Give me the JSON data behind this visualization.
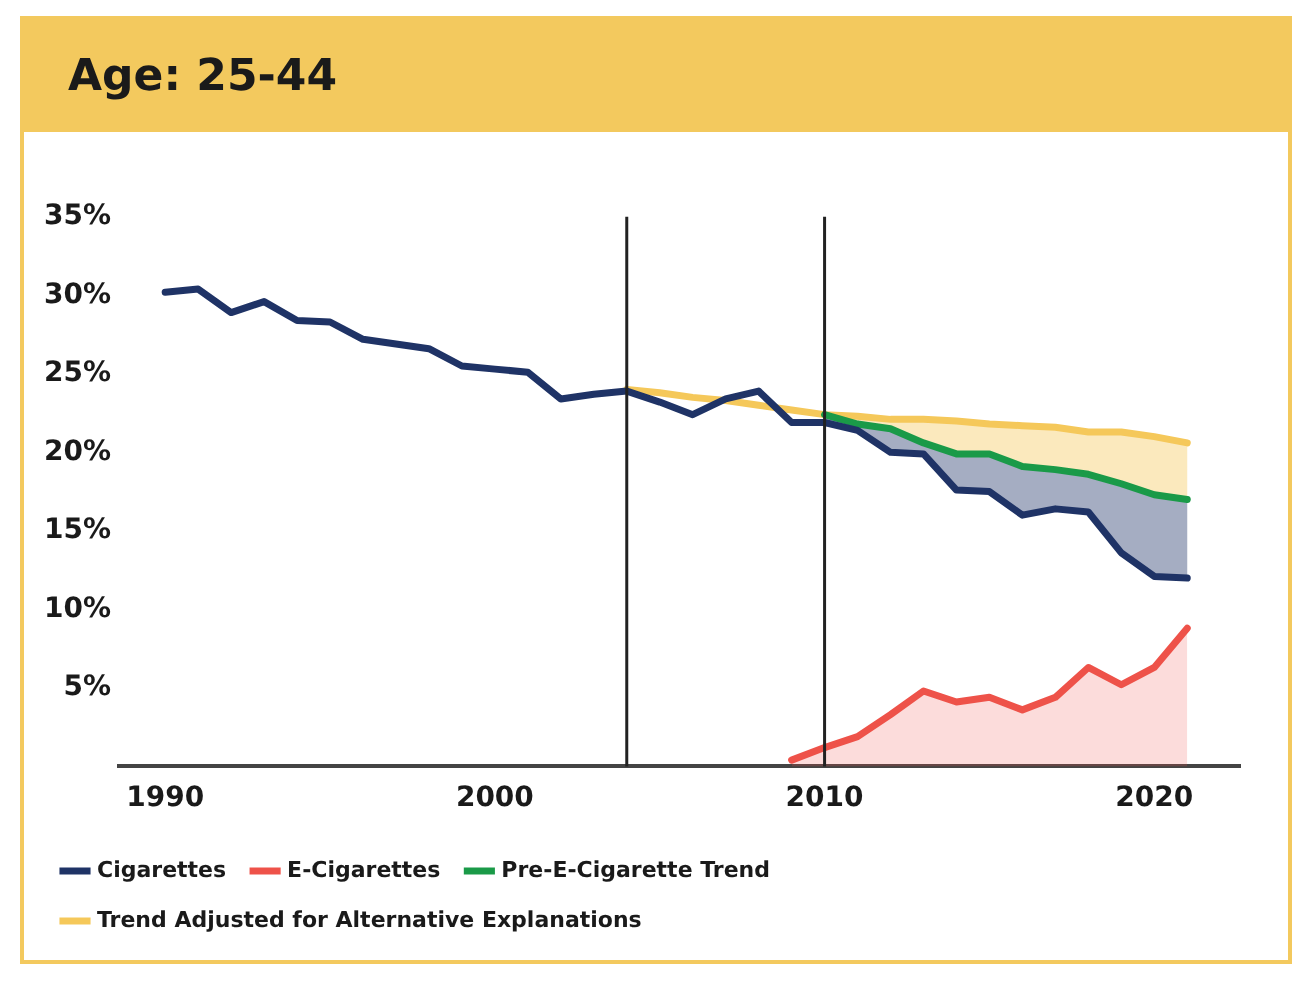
{
  "chart_data": {
    "type": "line",
    "title": "Age: 25-44",
    "xlim": [
      1988.6,
      2022.6
    ],
    "xticks": [
      1990,
      2000,
      2010,
      2020
    ],
    "ylim": [
      0,
      35
    ],
    "yticks": [
      {
        "value": 5,
        "label": "5%"
      },
      {
        "value": 10,
        "label": "10%"
      },
      {
        "value": 15,
        "label": "15%"
      },
      {
        "value": 20,
        "label": "20%"
      },
      {
        "value": 25,
        "label": "25%"
      },
      {
        "value": 30,
        "label": "30%"
      },
      {
        "value": 35,
        "label": "35%"
      }
    ],
    "grid": false,
    "legend": "bottom",
    "marker": "none",
    "line_style": "solid",
    "ref_lines": [
      {
        "axis": "x",
        "value": 2004,
        "color": "#222222"
      },
      {
        "axis": "x",
        "value": 2010,
        "color": "#222222"
      }
    ],
    "series": [
      {
        "name": "Cigarettes",
        "color": "#1f3366",
        "x": [
          1990,
          1991,
          1992,
          1993,
          1994,
          1995,
          1996,
          1997,
          1998,
          1999,
          2000,
          2001,
          2002,
          2003,
          2004,
          2005,
          2006,
          2007,
          2008,
          2009,
          2010,
          2011,
          2012,
          2013,
          2014,
          2015,
          2016,
          2017,
          2018,
          2019,
          2020,
          2021
        ],
        "values": [
          30.2,
          30.4,
          28.9,
          29.6,
          28.4,
          28.3,
          27.2,
          26.9,
          26.6,
          25.5,
          25.3,
          25.1,
          23.4,
          23.7,
          23.9,
          23.2,
          22.4,
          23.4,
          23.9,
          21.9,
          21.9,
          21.4,
          20.0,
          19.9,
          17.6,
          17.5,
          16.0,
          16.4,
          16.2,
          13.6,
          12.1,
          12.0
        ],
        "lower": [
          null,
          null,
          null,
          null,
          null,
          null,
          null,
          null,
          null,
          null,
          null,
          null,
          null,
          null,
          null,
          null,
          null,
          null,
          null,
          null,
          21.9,
          21.4,
          20.0,
          19.9,
          17.6,
          17.5,
          16.0,
          16.4,
          16.2,
          13.6,
          12.1,
          12.0
        ],
        "upper": [
          null,
          null,
          null,
          null,
          null,
          null,
          null,
          null,
          null,
          null,
          null,
          null,
          null,
          null,
          null,
          null,
          null,
          null,
          null,
          null,
          22.4,
          21.8,
          21.5,
          20.6,
          19.9,
          19.9,
          19.1,
          18.9,
          18.6,
          18.0,
          17.3,
          17.0
        ]
      },
      {
        "name": "E-Cigarettes",
        "color": "#ee5249",
        "type": "area",
        "x": [
          2009,
          2010,
          2011,
          2012,
          2013,
          2014,
          2015,
          2016,
          2017,
          2018,
          2019,
          2020,
          2021
        ],
        "values": [
          0.4,
          1.2,
          1.9,
          3.3,
          4.8,
          4.1,
          4.4,
          3.6,
          4.4,
          6.3,
          5.2,
          6.3,
          8.8
        ]
      },
      {
        "name": "Pre-E-Cigarette Trend",
        "color": "#1a9a48",
        "x": [
          2010,
          2011,
          2012,
          2013,
          2014,
          2015,
          2016,
          2017,
          2018,
          2019,
          2020,
          2021
        ],
        "values": [
          22.4,
          21.8,
          21.5,
          20.6,
          19.9,
          19.9,
          19.1,
          18.9,
          18.6,
          18.0,
          17.3,
          17.0
        ]
      },
      {
        "name": "Trend Adjusted for Alternative Explanations",
        "color": "#f5c85a",
        "x": [
          2004,
          2005,
          2006,
          2007,
          2008,
          2009,
          2010,
          2011,
          2012,
          2013,
          2014,
          2015,
          2016,
          2017,
          2018,
          2019,
          2020,
          2021
        ],
        "values": [
          24.0,
          23.8,
          23.5,
          23.3,
          23.0,
          22.7,
          22.4,
          22.3,
          22.1,
          22.1,
          22.0,
          21.8,
          21.7,
          21.6,
          21.3,
          21.3,
          21.0,
          20.6
        ],
        "lower": [
          null,
          null,
          null,
          null,
          null,
          null,
          22.4,
          21.8,
          21.5,
          20.6,
          19.9,
          19.9,
          19.1,
          18.9,
          18.6,
          18.0,
          17.3,
          17.0
        ],
        "upper": [
          null,
          null,
          null,
          null,
          null,
          null,
          22.4,
          22.3,
          22.1,
          22.1,
          22.0,
          21.8,
          21.7,
          21.6,
          21.3,
          21.3,
          21.0,
          20.6
        ]
      }
    ]
  }
}
